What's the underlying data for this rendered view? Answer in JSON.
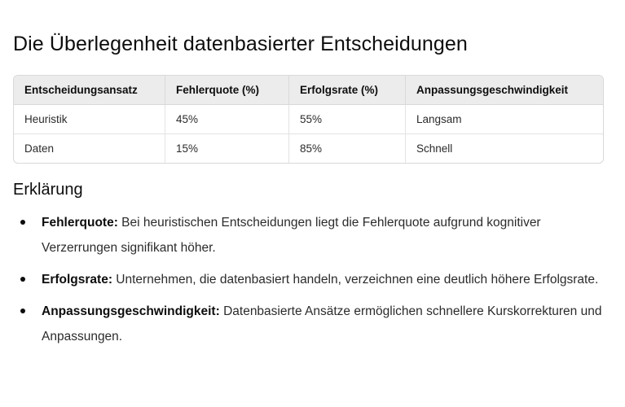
{
  "title": "Die Überlegenheit datenbasierter Entscheidungen",
  "table": {
    "headers": [
      "Entscheidungsansatz",
      "Fehlerquote (%)",
      "Erfolgsrate (%)",
      "Anpassungsgeschwindigkeit"
    ],
    "rows": [
      [
        "Heuristik",
        "45%",
        "55%",
        "Langsam"
      ],
      [
        "Daten",
        "15%",
        "85%",
        "Schnell"
      ]
    ]
  },
  "section_heading": "Erklärung",
  "bullets": [
    {
      "term": "Fehlerquote:",
      "text": " Bei heuristischen Entscheidungen liegt die Fehlerquote aufgrund kognitiver Verzerrungen signifikant höher."
    },
    {
      "term": "Erfolgsrate:",
      "text": " Unternehmen, die datenbasiert handeln, verzeichnen eine deutlich höhere Erfolgsrate."
    },
    {
      "term": "Anpassungsgeschwindigkeit:",
      "text": " Datenbasierte Ansätze ermöglichen schnellere Kurskorrekturen und Anpassungen."
    }
  ]
}
